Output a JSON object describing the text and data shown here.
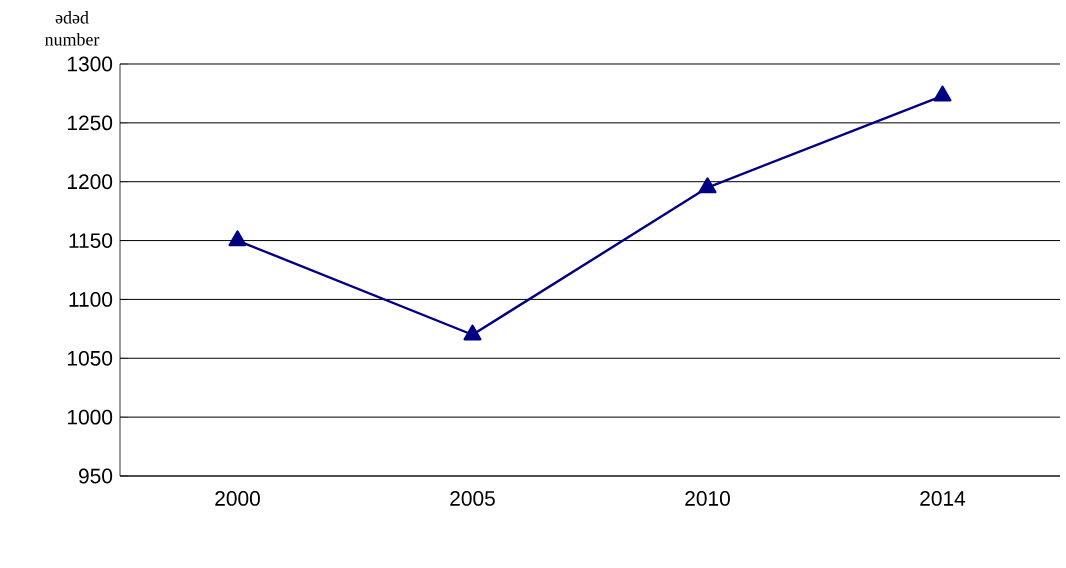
{
  "chart_data": {
    "type": "line",
    "ylabel": "ədəd number",
    "categories": [
      "2000",
      "2005",
      "2010",
      "2014"
    ],
    "series": [
      {
        "color": "#000080",
        "values": [
          1150,
          1070,
          1195,
          1273
        ]
      }
    ],
    "ylim": [
      950,
      1300
    ],
    "yticks": [
      950,
      1000,
      1050,
      1100,
      1150,
      1200,
      1250,
      1300
    ],
    "grid": "y",
    "marker": "triangle",
    "line_style": "solid"
  }
}
